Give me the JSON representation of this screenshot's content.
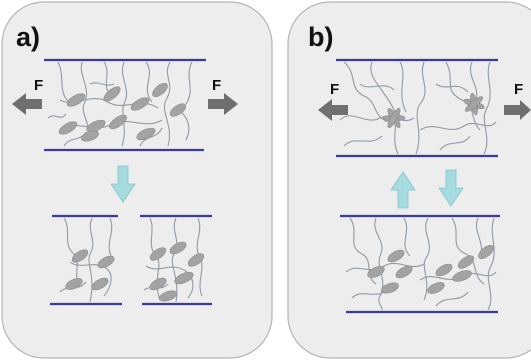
{
  "colors": {
    "panel_fill": "#ededed",
    "panel_stroke": "#b5b5b5",
    "plate": "#3a3aa0",
    "chain": "#8f9aa6",
    "particle": "#a3a3a3",
    "force_arrow": "#6f6f6f",
    "flow_arrow": "#a6dbe0",
    "flow_arrow_stroke": "#7ec4cc"
  },
  "panels": [
    {
      "label": "a)",
      "force_left": "F",
      "force_right": "F"
    },
    {
      "label": "b)",
      "force_left": "F",
      "force_right": "F"
    }
  ]
}
